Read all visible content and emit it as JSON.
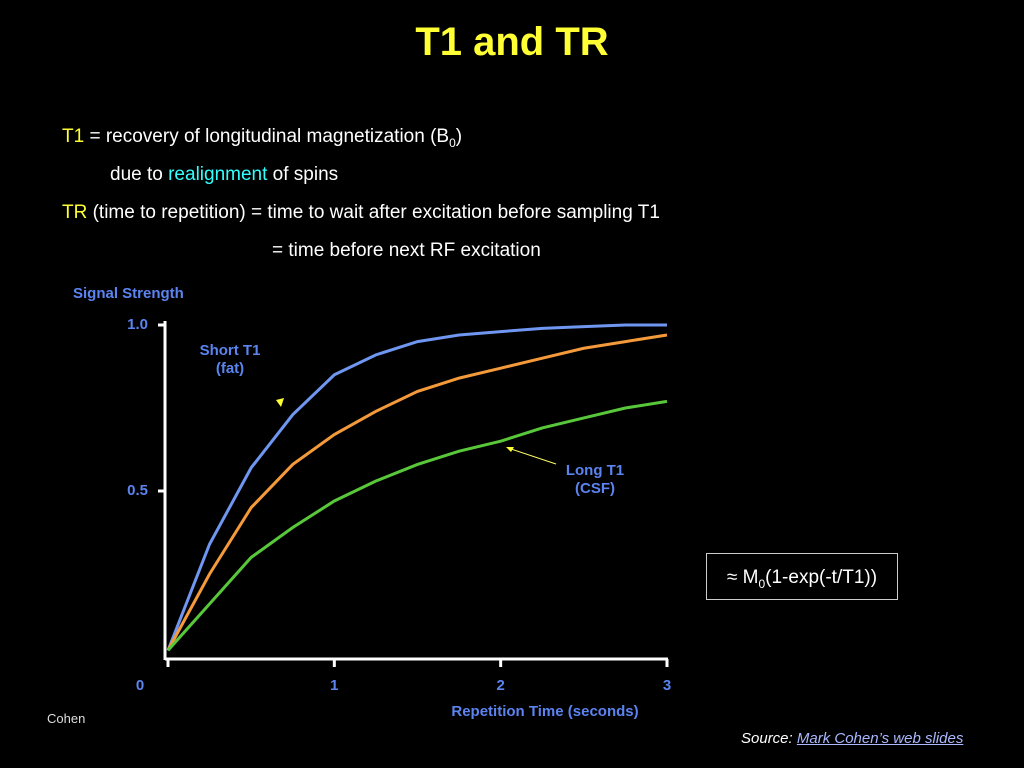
{
  "slide": {
    "title": "T1 and TR",
    "lines": [
      [
        {
          "text": "T1",
          "color": "#ffff33"
        },
        {
          "text": " = recovery of longitudinal magnetization (B"
        },
        {
          "text": "0",
          "sub": true
        },
        {
          "text": ")"
        }
      ],
      [
        {
          "text": "due to "
        },
        {
          "text": "realignment",
          "color": "#33ffff"
        },
        {
          "text": " of spins"
        }
      ],
      [
        {
          "text": "TR",
          "color": "#ffff33"
        },
        {
          "text": " (time to repetition) = time to wait after excitation before sampling T1"
        }
      ],
      [
        {
          "text": "= time before next RF excitation"
        }
      ]
    ],
    "formula": [
      {
        "text": "≈ M"
      },
      {
        "text": "0",
        "sub": true
      },
      {
        "text": "(1-exp(-t/T1))"
      }
    ],
    "footer": "Cohen",
    "source_label": "Source:",
    "source_link": "Mark Cohen’s web slides"
  },
  "chart_data": {
    "type": "line",
    "y_label": "Signal Strength",
    "x_label": "Repetition Time (seconds)",
    "x": [
      0,
      0.25,
      0.5,
      0.75,
      1,
      1.25,
      1.5,
      1.75,
      2,
      2.25,
      2.5,
      2.75,
      3
    ],
    "series": [
      {
        "label_lines": [
          "Short T1",
          "(fat)"
        ],
        "color": "#6f96f0",
        "values": [
          0.02,
          0.34,
          0.57,
          0.73,
          0.85,
          0.91,
          0.95,
          0.97,
          0.98,
          0.99,
          0.995,
          1.0,
          1.0
        ]
      },
      {
        "color": "#f59a3a",
        "values": [
          0.02,
          0.25,
          0.45,
          0.58,
          0.67,
          0.74,
          0.8,
          0.84,
          0.87,
          0.9,
          0.93,
          0.95,
          0.97
        ]
      },
      {
        "label_lines": [
          "Long T1",
          "(CSF)"
        ],
        "color": "#58c83a",
        "values": [
          0.02,
          0.16,
          0.3,
          0.39,
          0.47,
          0.53,
          0.58,
          0.62,
          0.65,
          0.69,
          0.72,
          0.75,
          0.77
        ]
      }
    ],
    "xlim": [
      0,
      3
    ],
    "ylim": [
      0,
      1
    ],
    "xticks": [
      0,
      1,
      2,
      3
    ],
    "yticks": [
      0.5,
      {
        "value": 1,
        "label": "1.0"
      }
    ],
    "axis_color": "#ffffff",
    "label_color": "#5b84f0"
  }
}
